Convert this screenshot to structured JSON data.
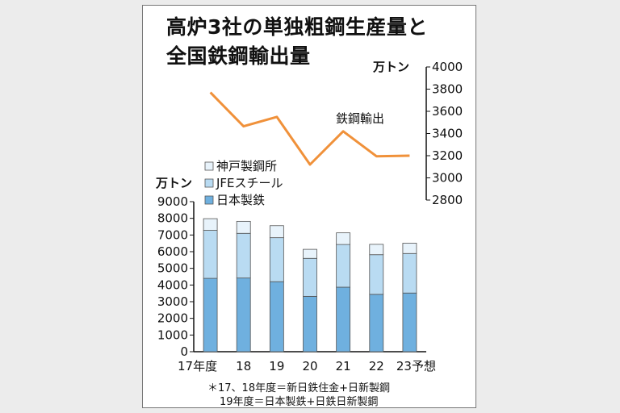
{
  "title_line1": "高炉3社の単独粗鋼生産量と",
  "title_line2": "全国鉄鋼輸出量",
  "notes": [
    "＊17、18年度＝新日鉄住金+日新製鋼",
    "19年度＝日本製鉄+日鉄日新製鋼"
  ],
  "colors": {
    "nippon": "#6fb0df",
    "jfe": "#b9dbf2",
    "kobe": "#e8f3fb",
    "export_line": "#f0913a"
  },
  "chart_data": [
    {
      "type": "bar",
      "stacked": true,
      "unit_label": "万トン",
      "categories": [
        "17年度",
        "18",
        "19",
        "20",
        "21",
        "22",
        "23予想"
      ],
      "series": [
        {
          "name": "日本製鉄",
          "values": [
            4400,
            4420,
            4200,
            3320,
            3870,
            3440,
            3520
          ]
        },
        {
          "name": "JFEスチール",
          "values": [
            2880,
            2680,
            2640,
            2280,
            2560,
            2380,
            2370
          ]
        },
        {
          "name": "神戸製鋼所",
          "values": [
            700,
            720,
            720,
            540,
            700,
            620,
            620
          ]
        }
      ],
      "y_ticks": [
        "0",
        "1000",
        "2000",
        "3000",
        "4000",
        "5000",
        "6000",
        "7000",
        "8000",
        "9000"
      ],
      "ylim": [
        0,
        9000
      ],
      "legend": "top-left",
      "legend_order": [
        "神戸製鋼所",
        "JFEスチール",
        "日本製鉄"
      ]
    },
    {
      "type": "line",
      "unit_label": "万トン",
      "x": [
        "17年度",
        "18",
        "19",
        "20",
        "21",
        "22",
        "23予想"
      ],
      "series": [
        {
          "name": "鉄鋼輸出",
          "values": [
            3770,
            3465,
            3550,
            3120,
            3420,
            3195,
            3200
          ]
        }
      ],
      "y_ticks": [
        "2800",
        "3000",
        "3200",
        "3400",
        "3600",
        "3800",
        "4000"
      ],
      "ylim": [
        2800,
        4000
      ]
    }
  ]
}
